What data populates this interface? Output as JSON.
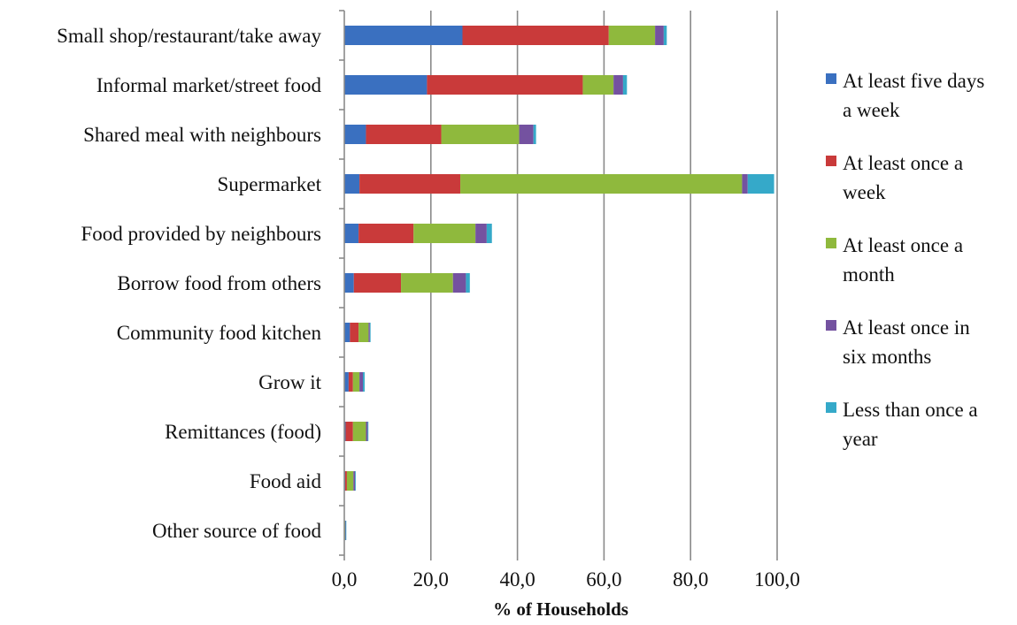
{
  "chart_data": {
    "type": "bar",
    "orientation": "horizontal",
    "stacked": true,
    "categories": [
      "Small shop/restaurant/take away",
      "Informal market/street food",
      "Shared meal with neighbours",
      "Supermarket",
      "Food provided by neighbours",
      "Borrow food from others",
      "Community food kitchen",
      "Grow it",
      "Remittances (food)",
      "Food aid",
      "Other source of food"
    ],
    "series": [
      {
        "name": "At least five days a week",
        "color": "#3a70c0",
        "values": [
          27.3,
          19.1,
          5.0,
          3.5,
          3.3,
          2.2,
          1.3,
          1.0,
          0.3,
          0.2,
          0.0
        ]
      },
      {
        "name": "At least once a week",
        "color": "#c93a3a",
        "values": [
          33.8,
          36.0,
          17.4,
          23.3,
          12.7,
          10.9,
          2.0,
          1.0,
          1.7,
          0.4,
          0.0
        ]
      },
      {
        "name": "At least once a month",
        "color": "#8fb93d",
        "values": [
          10.7,
          7.1,
          18.0,
          65.1,
          14.3,
          12.0,
          2.3,
          1.5,
          3.0,
          1.5,
          0.2
        ]
      },
      {
        "name": "At least once in six months",
        "color": "#7452a0",
        "values": [
          2.0,
          2.2,
          3.3,
          1.3,
          2.6,
          3.0,
          0.3,
          0.8,
          0.4,
          0.4,
          0.1
        ]
      },
      {
        "name": "Less than once a year",
        "color": "#35a9c9",
        "values": [
          0.7,
          0.9,
          0.6,
          6.1,
          1.2,
          0.9,
          0.1,
          0.4,
          0.1,
          0.1,
          0.1
        ]
      }
    ],
    "xlabel": "% of Households",
    "ylabel": "",
    "title": "",
    "xlim": [
      0,
      100
    ],
    "xticks": [
      0,
      20,
      40,
      60,
      80,
      100
    ],
    "xtick_labels": [
      "0,0",
      "20,0",
      "40,0",
      "60,0",
      "80,0",
      "100,0"
    ],
    "grid": "vertical",
    "legend": "right",
    "legend_labels": [
      [
        "At least five days",
        "a week"
      ],
      [
        "At least once a",
        "week"
      ],
      [
        "At least once a",
        "month"
      ],
      [
        "At least once in",
        "six months"
      ],
      [
        "Less than once a",
        "year"
      ]
    ]
  }
}
